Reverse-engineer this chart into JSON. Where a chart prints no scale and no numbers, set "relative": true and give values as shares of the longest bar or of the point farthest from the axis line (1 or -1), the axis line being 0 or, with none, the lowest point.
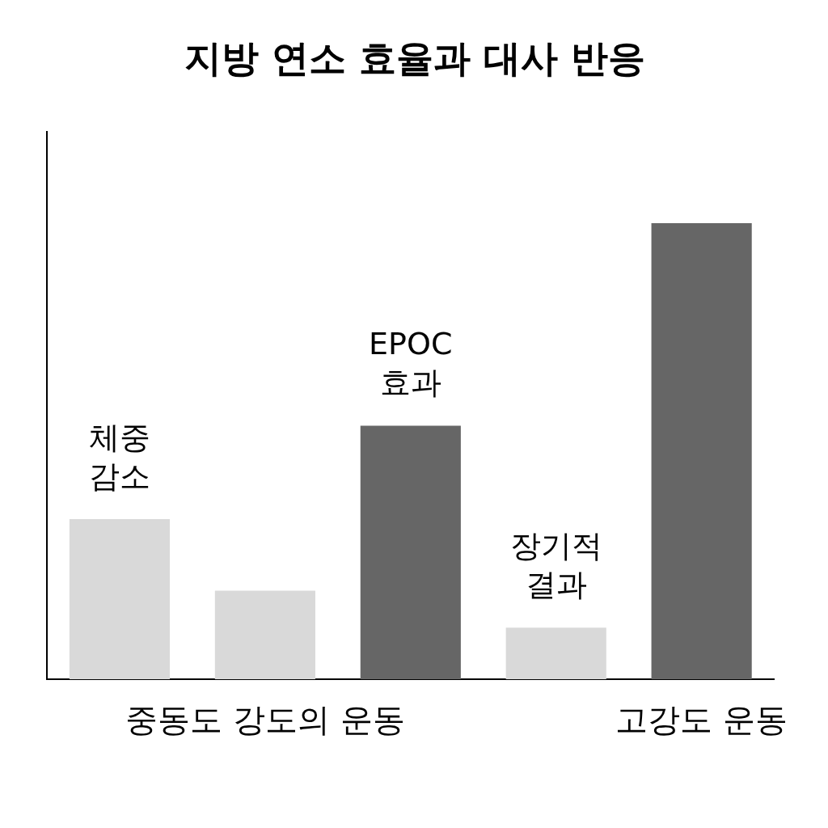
{
  "chart_data": {
    "type": "bar",
    "title": "지방 연소 효율과 대사 반응",
    "relative": true,
    "categories": [
      null,
      "중동도 강도의 운동",
      null,
      null,
      "고강도 운동"
    ],
    "values": [
      0.351,
      0.194,
      0.556,
      0.113,
      1
    ],
    "colors": [
      "#d9d9d9",
      "#d9d9d9",
      "#666666",
      "#d9d9d9",
      "#666666"
    ],
    "annotations": [
      {
        "text": "체중 감소",
        "y": 0.351
      },
      {
        "text": "EPOC 효과",
        "y": 0.556
      },
      {
        "text": "장기적 결과",
        "y": 0.113
      }
    ],
    "grid": false,
    "legend": false
  }
}
